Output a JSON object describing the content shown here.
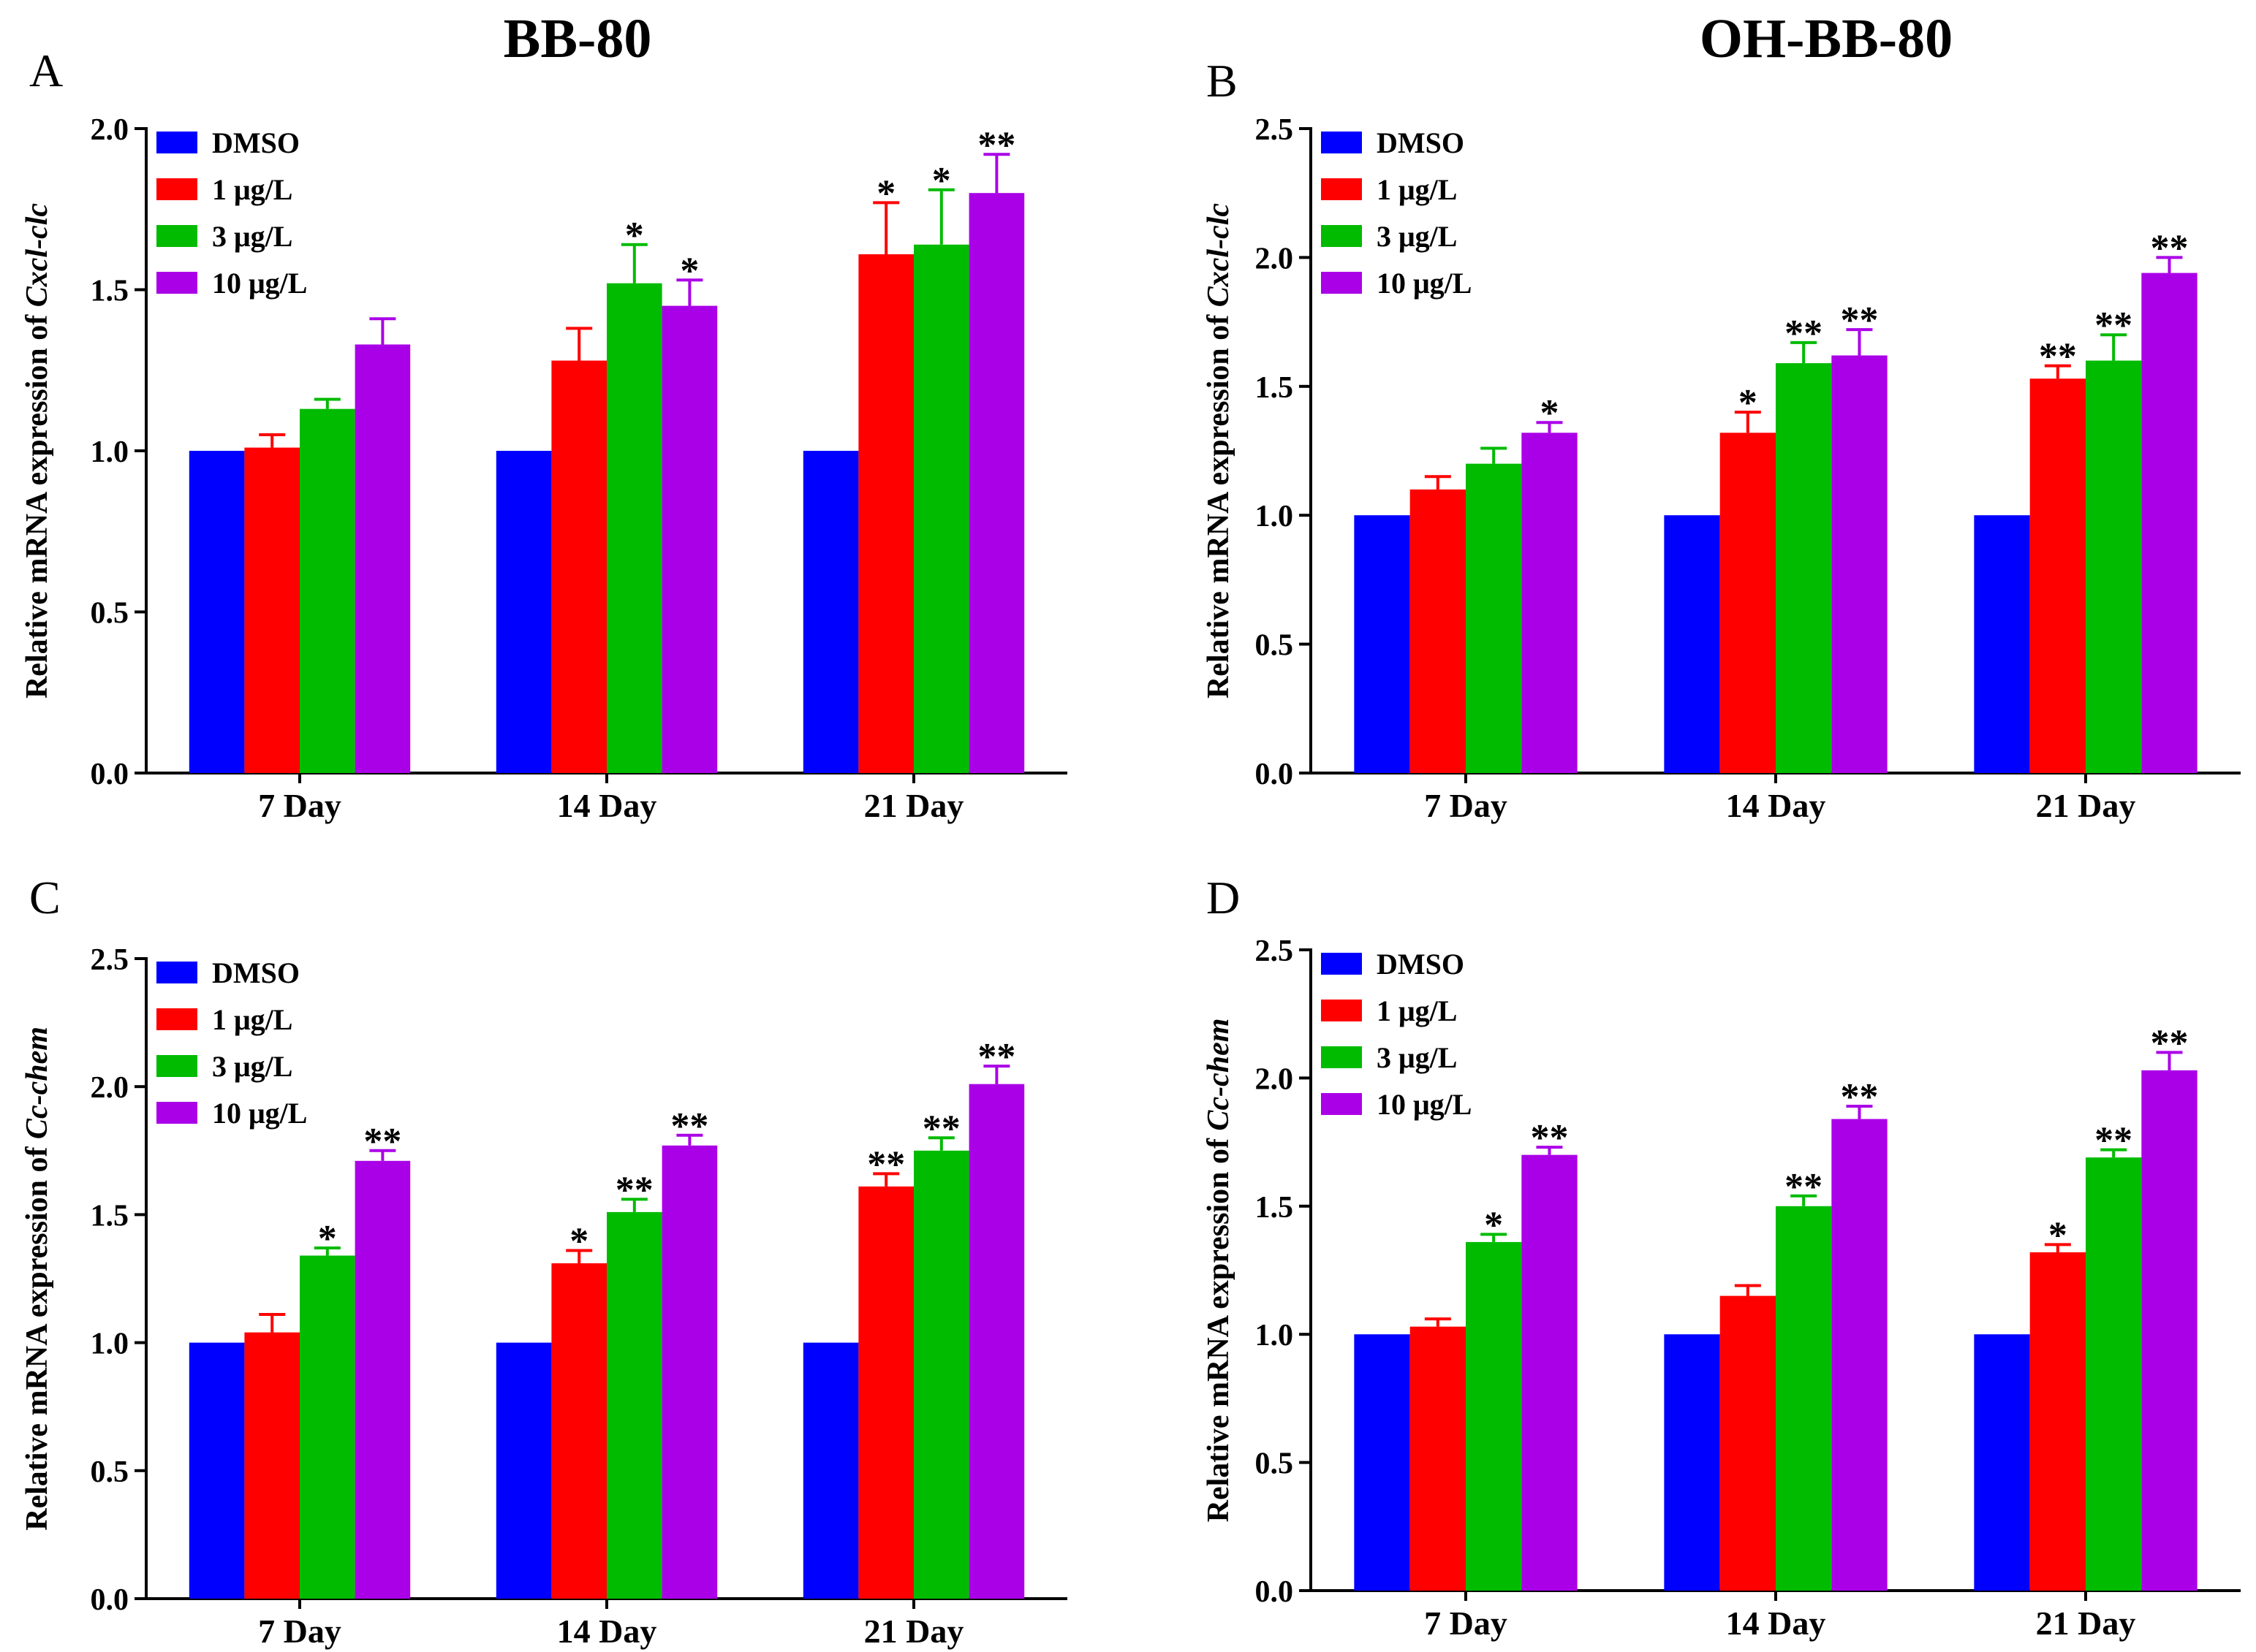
{
  "column_titles": [
    "BB-80",
    "OH-BB-80"
  ],
  "colors": {
    "DMSO": "#0000FF",
    "1 μg/L": "#FF0000",
    "3 μg/L": "#00BB00",
    "10 μg/L": "#AA00E8"
  },
  "chart_data": [
    {
      "panel": "A",
      "type": "bar",
      "title": "BB-80",
      "ylabel_prefix": "Relative mRNA expression of ",
      "ylabel_gene": "Cxcl-clc",
      "xlabel": "",
      "ylim": [
        0,
        2.0
      ],
      "yticks": [
        0.0,
        0.5,
        1.0,
        1.5,
        2.0
      ],
      "ytick_labels": [
        "0.0",
        "0.5",
        "1.0",
        "1.5",
        "2.0"
      ],
      "categories": [
        "7 Day",
        "14 Day",
        "21 Day"
      ],
      "legend": [
        "DMSO",
        "1 μg/L",
        "3 μg/L",
        "10 μg/L"
      ],
      "legend_position": "top-left",
      "series": [
        {
          "name": "DMSO",
          "values": [
            1.0,
            1.0,
            1.0
          ],
          "errors": [
            0,
            0,
            0
          ],
          "sig": [
            "",
            "",
            ""
          ]
        },
        {
          "name": "1 μg/L",
          "values": [
            1.01,
            1.28,
            1.61
          ],
          "errors": [
            0.04,
            0.1,
            0.16
          ],
          "sig": [
            "",
            "",
            "*"
          ]
        },
        {
          "name": "3 μg/L",
          "values": [
            1.13,
            1.52,
            1.64
          ],
          "errors": [
            0.03,
            0.12,
            0.17
          ],
          "sig": [
            "",
            "*",
            "*"
          ]
        },
        {
          "name": "10 μg/L",
          "values": [
            1.33,
            1.45,
            1.8
          ],
          "errors": [
            0.08,
            0.08,
            0.12
          ],
          "sig": [
            "",
            "*",
            "**"
          ]
        }
      ]
    },
    {
      "panel": "B",
      "type": "bar",
      "title": "OH-BB-80",
      "ylabel_prefix": "Relative mRNA expression of ",
      "ylabel_gene": "Cxcl-clc",
      "xlabel": "",
      "ylim": [
        0,
        2.5
      ],
      "yticks": [
        0.0,
        0.5,
        1.0,
        1.5,
        2.0,
        2.5
      ],
      "ytick_labels": [
        "0.0",
        "0.5",
        "1.0",
        "1.5",
        "2.0",
        "2.5"
      ],
      "categories": [
        "7 Day",
        "14 Day",
        "21 Day"
      ],
      "legend": [
        "DMSO",
        "1 μg/L",
        "3 μg/L",
        "10 μg/L"
      ],
      "legend_position": "top-left",
      "series": [
        {
          "name": "DMSO",
          "values": [
            1.0,
            1.0,
            1.0
          ],
          "errors": [
            0,
            0,
            0
          ],
          "sig": [
            "",
            "",
            ""
          ]
        },
        {
          "name": "1 μg/L",
          "values": [
            1.1,
            1.32,
            1.53
          ],
          "errors": [
            0.05,
            0.08,
            0.05
          ],
          "sig": [
            "",
            "*",
            "**"
          ]
        },
        {
          "name": "3 μg/L",
          "values": [
            1.2,
            1.59,
            1.6
          ],
          "errors": [
            0.06,
            0.08,
            0.1
          ],
          "sig": [
            "",
            "**",
            "**"
          ]
        },
        {
          "name": "10 μg/L",
          "values": [
            1.32,
            1.62,
            1.94
          ],
          "errors": [
            0.04,
            0.1,
            0.06
          ],
          "sig": [
            "*",
            "**",
            "**"
          ]
        }
      ]
    },
    {
      "panel": "C",
      "type": "bar",
      "title": "",
      "ylabel_prefix": "Relative mRNA expression of ",
      "ylabel_gene": "Cc-chem",
      "xlabel": "",
      "ylim": [
        0,
        2.5
      ],
      "yticks": [
        0.0,
        0.5,
        1.0,
        1.5,
        2.0,
        2.5
      ],
      "ytick_labels": [
        "0.0",
        "0.5",
        "1.0",
        "1.5",
        "2.0",
        "2.5"
      ],
      "categories": [
        "7 Day",
        "14 Day",
        "21 Day"
      ],
      "legend": [
        "DMSO",
        "1 μg/L",
        "3 μg/L",
        "10 μg/L"
      ],
      "legend_position": "top-left",
      "series": [
        {
          "name": "DMSO",
          "values": [
            1.0,
            1.0,
            1.0
          ],
          "errors": [
            0,
            0,
            0
          ],
          "sig": [
            "",
            "",
            ""
          ]
        },
        {
          "name": "1 μg/L",
          "values": [
            1.04,
            1.31,
            1.61
          ],
          "errors": [
            0.07,
            0.05,
            0.05
          ],
          "sig": [
            "",
            "*",
            "**"
          ]
        },
        {
          "name": "3 μg/L",
          "values": [
            1.34,
            1.51,
            1.75
          ],
          "errors": [
            0.03,
            0.05,
            0.05
          ],
          "sig": [
            "*",
            "**",
            "**"
          ]
        },
        {
          "name": "10 μg/L",
          "values": [
            1.71,
            1.77,
            2.01
          ],
          "errors": [
            0.04,
            0.04,
            0.07
          ],
          "sig": [
            "**",
            "**",
            "**"
          ]
        }
      ]
    },
    {
      "panel": "D",
      "type": "bar",
      "title": "",
      "ylabel_prefix": "Relative mRNA expression of ",
      "ylabel_gene": "Cc-chem",
      "xlabel": "",
      "ylim": [
        0,
        2.5
      ],
      "yticks": [
        0.0,
        0.5,
        1.0,
        1.5,
        2.0,
        2.5
      ],
      "ytick_labels": [
        "0.0",
        "0.5",
        "1.0",
        "1.5",
        "2.0",
        "2.5"
      ],
      "categories": [
        "7 Day",
        "14 Day",
        "21 Day"
      ],
      "legend": [
        "DMSO",
        "1 μg/L",
        "3 μg/L",
        "10 μg/L"
      ],
      "legend_position": "top-left",
      "series": [
        {
          "name": "DMSO",
          "values": [
            1.0,
            1.0,
            1.0
          ],
          "errors": [
            0,
            0,
            0
          ],
          "sig": [
            "",
            "",
            ""
          ]
        },
        {
          "name": "1 μg/L",
          "values": [
            1.03,
            1.15,
            1.32
          ],
          "errors": [
            0.03,
            0.04,
            0.03
          ],
          "sig": [
            "",
            "",
            "*"
          ]
        },
        {
          "name": "3 μg/L",
          "values": [
            1.36,
            1.5,
            1.69
          ],
          "errors": [
            0.03,
            0.04,
            0.03
          ],
          "sig": [
            "*",
            "**",
            "**"
          ]
        },
        {
          "name": "10 μg/L",
          "values": [
            1.7,
            1.84,
            2.03
          ],
          "errors": [
            0.03,
            0.05,
            0.07
          ],
          "sig": [
            "**",
            "**",
            "**"
          ]
        }
      ]
    }
  ]
}
